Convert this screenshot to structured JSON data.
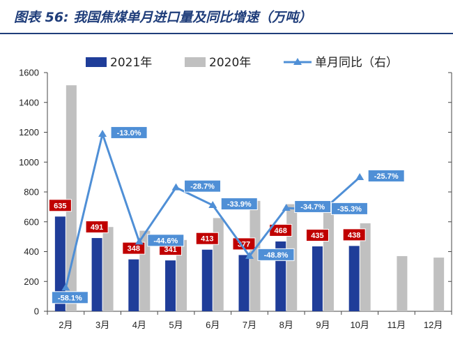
{
  "title": "图表 56: 我国焦煤单月进口量及同比增速（万吨）",
  "chart_data": {
    "type": "bar",
    "categories": [
      "2月",
      "3月",
      "4月",
      "5月",
      "6月",
      "7月",
      "8月",
      "9月",
      "10月",
      "11月",
      "12月"
    ],
    "series": [
      {
        "name": "2021年",
        "type": "bar",
        "color": "#1f3d99",
        "values": [
          635,
          491,
          348,
          341,
          413,
          377,
          468,
          435,
          438,
          null,
          null
        ]
      },
      {
        "name": "2020年",
        "type": "bar",
        "color": "#c0c0c0",
        "values": [
          1515,
          565,
          540,
          478,
          625,
          740,
          718,
          675,
          590,
          370,
          360
        ]
      },
      {
        "name": "单月同比（右）",
        "type": "line",
        "color": "#4f8fd6",
        "axis": "right",
        "values": [
          -58.1,
          -13.0,
          -44.6,
          -28.7,
          -33.9,
          -48.8,
          -34.7,
          -35.3,
          -25.7,
          null,
          null
        ]
      }
    ],
    "bar_labels": [
      "635",
      "491",
      "348",
      "341",
      "413",
      "377",
      "468",
      "435",
      "438"
    ],
    "line_labels": [
      "-58.1%",
      "-13.0%",
      "-44.6%",
      "-28.7%",
      "-33.9%",
      "-48.8%",
      "-34.7%",
      "-35.3%",
      "-25.7%"
    ],
    "ylim": [
      0,
      1600
    ],
    "yticks": [
      0,
      200,
      400,
      600,
      800,
      1000,
      1200,
      1400,
      1600
    ],
    "y2lim": [
      -65,
      5
    ],
    "legend_position": "top",
    "grid": false
  }
}
